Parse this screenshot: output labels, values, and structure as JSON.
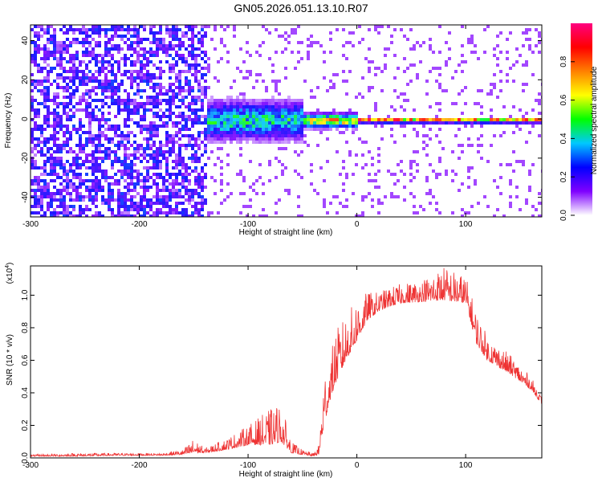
{
  "title": "GN05.2026.051.13.10.R07",
  "chart_data": [
    {
      "type": "heatmap",
      "xlabel": "Height of straight line (km)",
      "ylabel": "Frequency (Hz)",
      "xlim": [
        -300,
        170
      ],
      "ylim": [
        -50,
        48
      ],
      "xticks": [
        -300,
        -200,
        -100,
        0,
        100
      ],
      "yticks": [
        -40,
        -20,
        0,
        20,
        40
      ],
      "colorbar": {
        "label": "Normalized spectral amplitude",
        "range": [
          0,
          1
        ],
        "ticks": [
          0.0,
          0.2,
          0.4,
          0.6,
          0.8
        ],
        "colors": [
          "#ffffff",
          "#7f00ff",
          "#0000ff",
          "#00c8ff",
          "#00ff00",
          "#ffff00",
          "#ff8000",
          "#ff0000",
          "#ff0080"
        ]
      },
      "bands": [
        {
          "x": [
            -300,
            -140
          ],
          "freq_spread": 48,
          "amplitude": 0.22,
          "note": "broadband noise"
        },
        {
          "x": [
            -140,
            -50
          ],
          "freq_spread": 8,
          "amplitude": 0.45
        },
        {
          "x": [
            -50,
            0
          ],
          "freq_spread": 3,
          "amplitude": 0.7
        },
        {
          "x": [
            0,
            170
          ],
          "freq_spread": 1,
          "amplitude": 0.95
        }
      ]
    },
    {
      "type": "line",
      "xlabel": "Height of straight line (km)",
      "ylabel": "SNR (10 * v/v)",
      "yscale_label": "(x10",
      "yscale_exp": "4",
      "xlim": [
        -300,
        170
      ],
      "ylim": [
        0,
        1.18
      ],
      "xticks": [
        -300,
        -200,
        -100,
        0,
        100
      ],
      "yticks": [
        0.0,
        0.2,
        0.4,
        0.6,
        0.8,
        1.0
      ],
      "color": "#ee3333",
      "envelope": {
        "x": [
          -300,
          -260,
          -220,
          -180,
          -160,
          -150,
          -140,
          -120,
          -100,
          -80,
          -70,
          -60,
          -50,
          -40,
          -35,
          -30,
          -25,
          -20,
          -10,
          0,
          10,
          20,
          30,
          40,
          60,
          80,
          100,
          110,
          120,
          140,
          160,
          170
        ],
        "base": [
          0.01,
          0.01,
          0.015,
          0.015,
          0.02,
          0.03,
          0.03,
          0.05,
          0.08,
          0.08,
          0.1,
          0.03,
          0.02,
          0.01,
          0.02,
          0.2,
          0.35,
          0.45,
          0.6,
          0.72,
          0.85,
          0.9,
          0.93,
          0.95,
          0.96,
          0.97,
          0.95,
          0.7,
          0.6,
          0.52,
          0.42,
          0.33
        ],
        "peak": [
          0.02,
          0.03,
          0.03,
          0.03,
          0.05,
          0.12,
          0.06,
          0.12,
          0.2,
          0.3,
          0.34,
          0.1,
          0.05,
          0.03,
          0.08,
          0.55,
          0.6,
          0.78,
          0.88,
          0.98,
          1.02,
          1.02,
          1.05,
          1.07,
          1.1,
          1.18,
          1.12,
          0.9,
          0.75,
          0.64,
          0.5,
          0.38
        ]
      }
    }
  ]
}
